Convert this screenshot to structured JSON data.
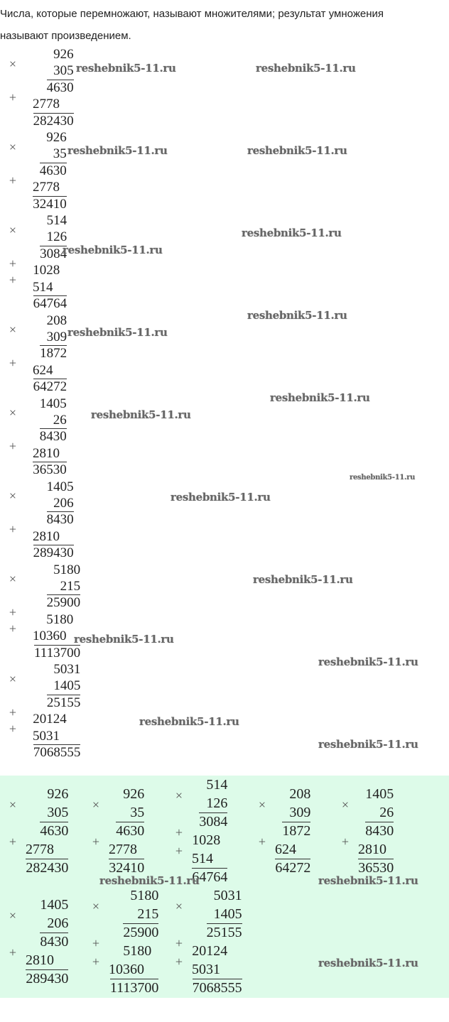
{
  "intro": {
    "line1": "Числа, которые перемножают, называют множителями; результат умножения",
    "line2": "называют произведением."
  },
  "signs": {
    "times": "×",
    "plus": "+"
  },
  "calculations": [
    {
      "a": "926",
      "b": "305",
      "partials": [
        "4630",
        "2778"
      ],
      "result": "282430"
    },
    {
      "a": "926",
      "b": "35",
      "partials": [
        "4630",
        "2778"
      ],
      "result": "32410"
    },
    {
      "a": "514",
      "b": "126",
      "partials": [
        "3084",
        "1028",
        "514"
      ],
      "result": "64764"
    },
    {
      "a": "208",
      "b": "309",
      "partials": [
        "1872",
        "624"
      ],
      "result": "64272"
    },
    {
      "a": "1405",
      "b": "26",
      "partials": [
        "8430",
        "2810"
      ],
      "result": "36530"
    },
    {
      "a": "1405",
      "b": "206",
      "partials": [
        "8430",
        "2810"
      ],
      "result": "289430"
    },
    {
      "a": "5180",
      "b": "215",
      "partials": [
        "25900",
        "5180",
        "10360"
      ],
      "result": "1113700"
    },
    {
      "a": "5031",
      "b": "1405",
      "partials": [
        "25155",
        "20124",
        "5031"
      ],
      "result": "7068555"
    }
  ],
  "watermark": "reshebnik5-11.ru",
  "colors": {
    "highlight_background": "#ddfbe9",
    "text": "#222222"
  }
}
